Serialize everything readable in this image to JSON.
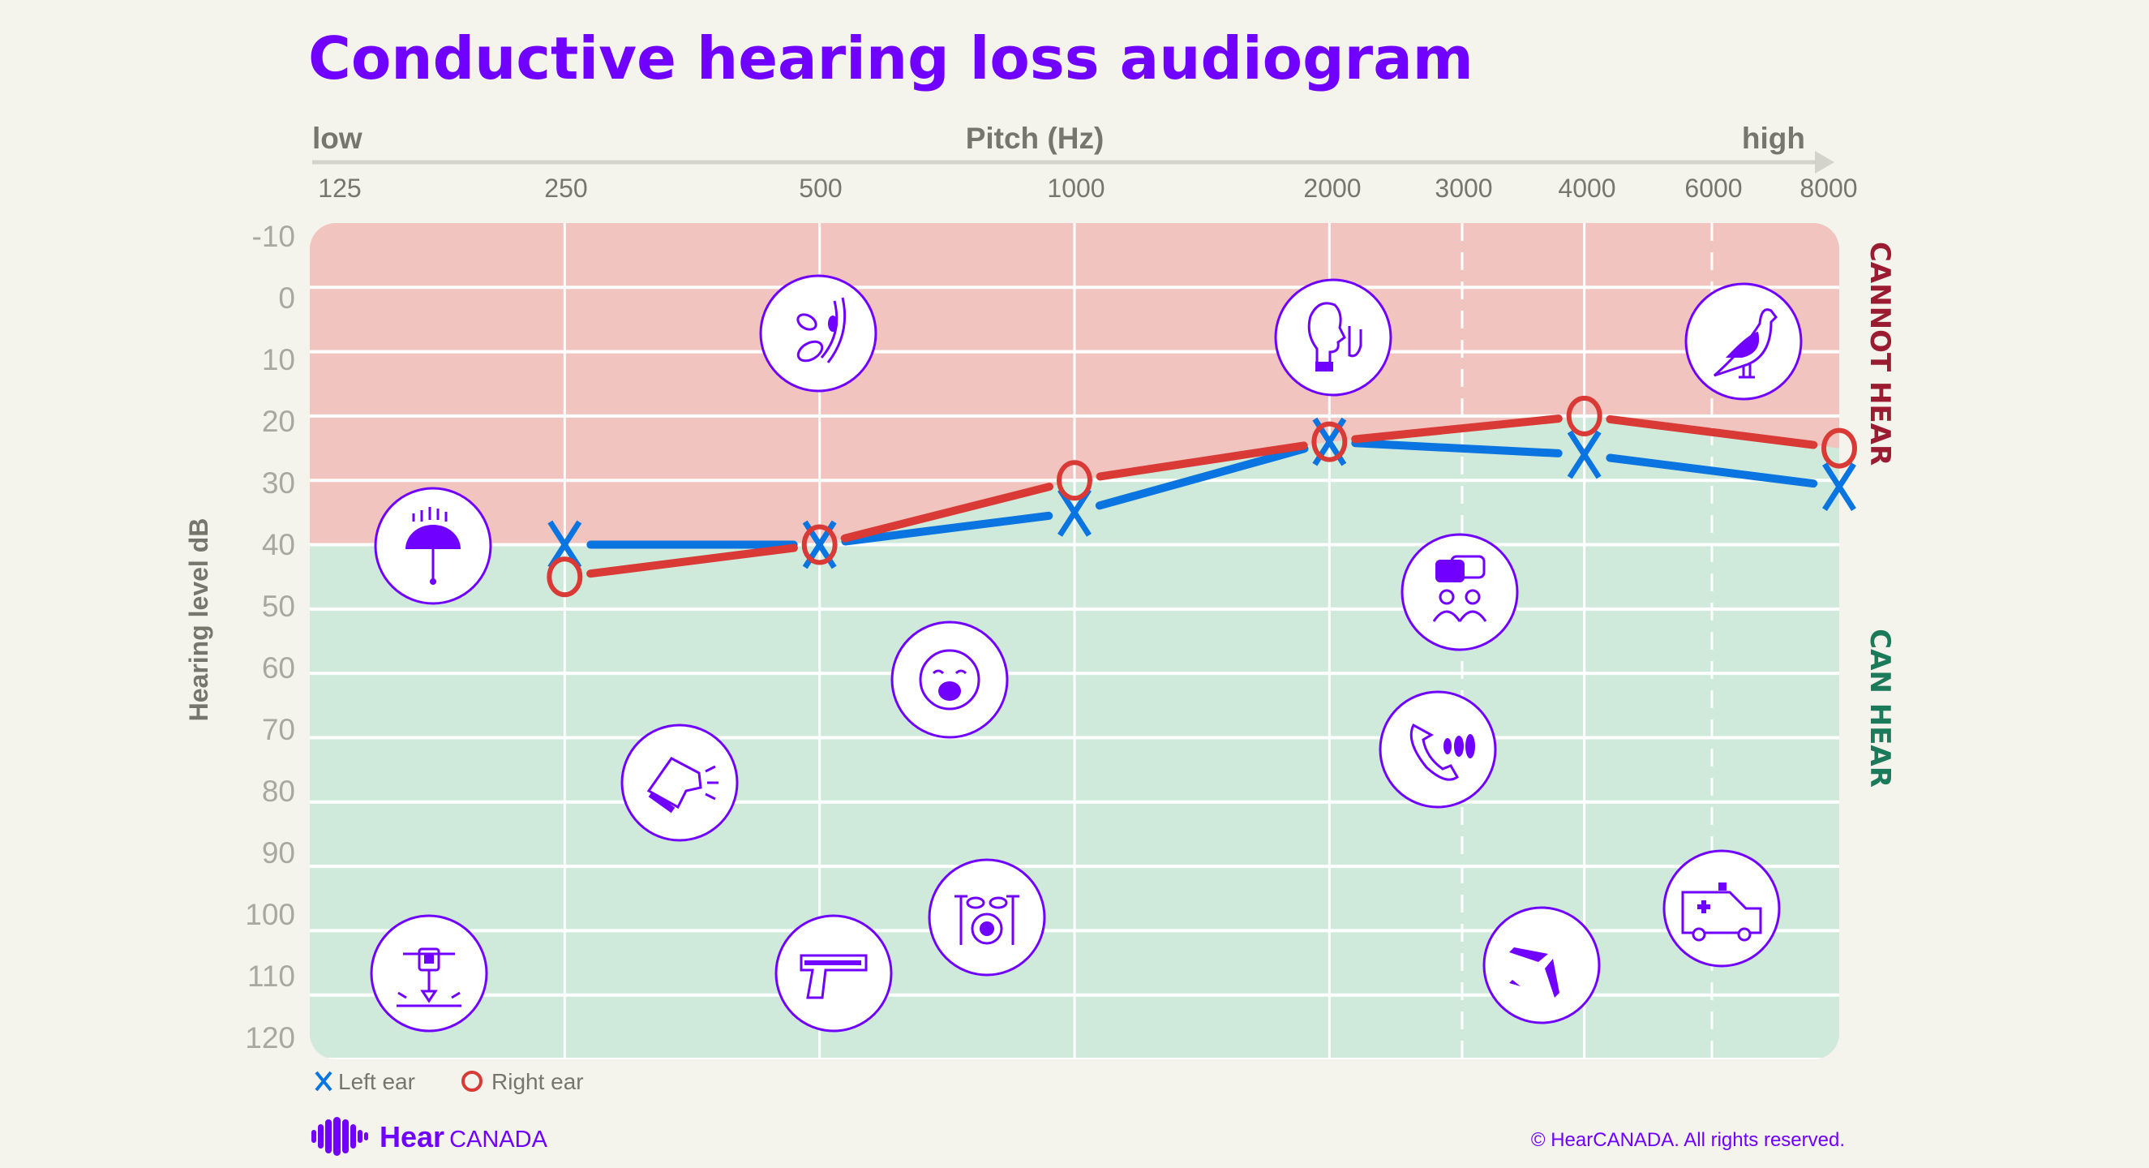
{
  "chart_data": {
    "type": "line",
    "title": "Conductive hearing loss audiogram",
    "x_header": {
      "left": "low",
      "center": "Pitch (Hz)",
      "right": "high"
    },
    "xlabel": "Pitch (Hz)",
    "ylabel": "Hearing level dB",
    "x_scale": "log2",
    "x_ticks": [
      "125",
      "250",
      "500",
      "1000",
      "2000",
      "3000",
      "4000",
      "6000",
      "8000"
    ],
    "y_ticks": [
      "-10",
      "0",
      "10",
      "20",
      "30",
      "40",
      "50",
      "60",
      "70",
      "80",
      "90",
      "100",
      "110",
      "120"
    ],
    "ylim": [
      -10,
      120
    ],
    "y_inverted": true,
    "grid": true,
    "x": [
      250,
      500,
      1000,
      2000,
      4000,
      8000
    ],
    "series": [
      {
        "name": "Left ear",
        "marker": "x",
        "color": "#0a74e0",
        "values": [
          40,
          40,
          35,
          24,
          26,
          31
        ]
      },
      {
        "name": "Right ear",
        "marker": "o",
        "color": "#d93a35",
        "values": [
          45,
          40,
          30,
          24,
          20,
          25
        ]
      }
    ],
    "regions": [
      {
        "label": "CANNOT HEAR",
        "color": "#f2c4bf",
        "text_color": "#9b1b30"
      },
      {
        "label": "CAN HEAR",
        "color": "#cfeadb",
        "text_color": "#1a7a5a"
      }
    ],
    "legend_placement": "bottom-left",
    "sound_icons": [
      "umbrella-rain-icon",
      "leaves-rustling-icon",
      "whisper-icon",
      "bird-chirping-icon",
      "conversation-icon",
      "baby-crying-icon",
      "dog-barking-icon",
      "phone-ringing-icon",
      "ambulance-siren-icon",
      "drums-icon",
      "airplane-icon",
      "gun-icon",
      "jackhammer-icon"
    ],
    "accent_color": "#7000ff"
  },
  "footer": {
    "logo_hear": "Hear",
    "logo_canada": "CANADA",
    "copyright": "© HearCANADA. All rights reserved."
  }
}
